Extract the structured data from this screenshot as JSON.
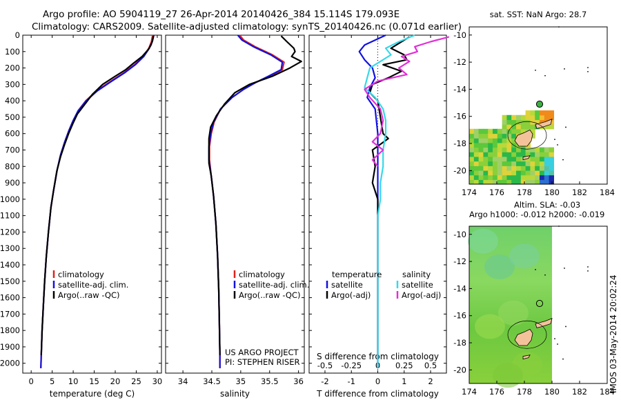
{
  "header": {
    "line1": "Argo profile: AO 5904119_27 26-Apr-2014 20140426_384 15.114S 179.093E",
    "line2": "Climatology: CARS2009. Satellite-adjusted climatology: synTS_20140426.nc (0.071d earlier)"
  },
  "side_stamp": "IMOS 03-May-2014 20:02:24",
  "colors": {
    "climatology": "#e0201b",
    "satellite": "#1010e0",
    "argo": "#000000",
    "sal_sat": "#35d8e8",
    "sal_argo": "#e030d8"
  },
  "chart_data": [
    {
      "id": "temperature",
      "type": "line",
      "xlabel": "temperature (deg C)",
      "ylabel": "",
      "xlim": [
        -2,
        31
      ],
      "ylim": [
        2060,
        0
      ],
      "xticks": [
        0,
        5,
        10,
        15,
        20,
        25,
        30
      ],
      "yticks": [
        0,
        100,
        200,
        300,
        400,
        500,
        600,
        700,
        800,
        900,
        1000,
        1100,
        1200,
        1300,
        1400,
        1500,
        1600,
        1700,
        1800,
        1900,
        2000
      ],
      "legend": [
        "climatology",
        "satellite-adj. clim.",
        "Argo(..raw -QC)"
      ],
      "series": [
        {
          "name": "climatology",
          "color": "#e0201b",
          "points": [
            [
              28.9,
              0
            ],
            [
              28.6,
              40
            ],
            [
              28.0,
              80
            ],
            [
              26.6,
              130
            ],
            [
              24.6,
              180
            ],
            [
              22.0,
              230
            ],
            [
              19.0,
              280
            ],
            [
              15.5,
              340
            ],
            [
              13.0,
              400
            ],
            [
              11.2,
              460
            ],
            [
              10.0,
              520
            ],
            [
              9.0,
              580
            ],
            [
              8.0,
              650
            ],
            [
              7.0,
              730
            ],
            [
              6.2,
              820
            ],
            [
              5.3,
              950
            ],
            [
              4.7,
              1050
            ],
            [
              4.1,
              1200
            ],
            [
              3.6,
              1350
            ],
            [
              3.2,
              1500
            ],
            [
              2.9,
              1650
            ],
            [
              2.6,
              1800
            ],
            [
              2.4,
              1950
            ],
            [
              2.3,
              2030
            ]
          ]
        },
        {
          "name": "satellite-adj. clim.",
          "color": "#1010e0",
          "points": [
            [
              29.2,
              0
            ],
            [
              28.8,
              40
            ],
            [
              28.1,
              80
            ],
            [
              26.8,
              130
            ],
            [
              24.8,
              180
            ],
            [
              22.2,
              230
            ],
            [
              19.2,
              280
            ],
            [
              15.7,
              340
            ],
            [
              13.1,
              400
            ],
            [
              11.2,
              460
            ],
            [
              10.0,
              520
            ],
            [
              9.0,
              580
            ],
            [
              8.0,
              650
            ],
            [
              7.0,
              730
            ],
            [
              6.2,
              820
            ],
            [
              5.3,
              950
            ],
            [
              4.7,
              1050
            ],
            [
              4.1,
              1200
            ],
            [
              3.6,
              1350
            ],
            [
              3.2,
              1500
            ],
            [
              2.9,
              1650
            ],
            [
              2.6,
              1800
            ],
            [
              2.4,
              1950
            ],
            [
              2.3,
              2030
            ]
          ]
        },
        {
          "name": "Argo(..raw -QC)",
          "color": "#000000",
          "points": [
            [
              29.1,
              5
            ],
            [
              28.9,
              30
            ],
            [
              28.5,
              60
            ],
            [
              27.8,
              90
            ],
            [
              26.4,
              130
            ],
            [
              24.4,
              170
            ],
            [
              22.5,
              210
            ],
            [
              20.0,
              250
            ],
            [
              17.0,
              300
            ],
            [
              14.6,
              360
            ],
            [
              12.8,
              420
            ],
            [
              11.0,
              480
            ],
            [
              9.9,
              540
            ],
            [
              8.9,
              600
            ],
            [
              7.9,
              670
            ],
            [
              7.0,
              740
            ],
            [
              6.1,
              830
            ],
            [
              5.3,
              950
            ],
            [
              4.7,
              1050
            ],
            [
              4.1,
              1200
            ],
            [
              3.6,
              1350
            ],
            [
              3.2,
              1500
            ],
            [
              2.9,
              1650
            ],
            [
              2.6,
              1800
            ],
            [
              2.4,
              1950
            ]
          ]
        }
      ]
    },
    {
      "id": "salinity",
      "type": "line",
      "xlabel": "salinity",
      "ylabel": "",
      "xlim": [
        33.7,
        36.1
      ],
      "ylim": [
        2060,
        0
      ],
      "xticks": [
        34,
        34.5,
        35,
        35.5,
        36
      ],
      "legend": [
        "climatology",
        "satellite-adj. clim.",
        "Argo(..raw -QC)"
      ],
      "annotation": [
        "US ARGO PROJECT",
        "PI: STEPHEN RISER"
      ],
      "series": [
        {
          "name": "climatology",
          "color": "#e0201b",
          "points": [
            [
              34.98,
              0
            ],
            [
              35.05,
              30
            ],
            [
              35.25,
              70
            ],
            [
              35.55,
              120
            ],
            [
              35.75,
              165
            ],
            [
              35.72,
              210
            ],
            [
              35.5,
              250
            ],
            [
              35.25,
              290
            ],
            [
              35.05,
              330
            ],
            [
              34.85,
              380
            ],
            [
              34.65,
              450
            ],
            [
              34.54,
              530
            ],
            [
              34.49,
              600
            ],
            [
              34.46,
              680
            ],
            [
              34.46,
              760
            ],
            [
              34.49,
              860
            ],
            [
              34.53,
              980
            ],
            [
              34.57,
              1150
            ],
            [
              34.6,
              1350
            ],
            [
              34.62,
              1550
            ],
            [
              34.63,
              1750
            ],
            [
              34.64,
              1950
            ],
            [
              34.64,
              2030
            ]
          ]
        },
        {
          "name": "satellite-adj. clim.",
          "color": "#1010e0",
          "points": [
            [
              34.95,
              0
            ],
            [
              35.02,
              30
            ],
            [
              35.22,
              70
            ],
            [
              35.52,
              120
            ],
            [
              35.72,
              165
            ],
            [
              35.7,
              210
            ],
            [
              35.48,
              250
            ],
            [
              35.25,
              290
            ],
            [
              35.05,
              330
            ],
            [
              34.85,
              380
            ],
            [
              34.65,
              450
            ],
            [
              34.53,
              530
            ],
            [
              34.48,
              600
            ],
            [
              34.45,
              680
            ],
            [
              34.45,
              760
            ],
            [
              34.49,
              860
            ],
            [
              34.53,
              980
            ],
            [
              34.57,
              1150
            ],
            [
              34.6,
              1350
            ],
            [
              34.62,
              1550
            ],
            [
              34.63,
              1750
            ],
            [
              34.64,
              1950
            ],
            [
              34.64,
              2030
            ]
          ]
        },
        {
          "name": "Argo(..raw -QC)",
          "color": "#000000",
          "points": [
            [
              35.7,
              5
            ],
            [
              35.8,
              40
            ],
            [
              35.92,
              80
            ],
            [
              35.94,
              100
            ],
            [
              35.88,
              130
            ],
            [
              36.05,
              160
            ],
            [
              35.85,
              200
            ],
            [
              35.55,
              250
            ],
            [
              35.15,
              300
            ],
            [
              34.9,
              350
            ],
            [
              34.72,
              420
            ],
            [
              34.58,
              490
            ],
            [
              34.48,
              560
            ],
            [
              34.45,
              630
            ],
            [
              34.45,
              700
            ],
            [
              34.45,
              780
            ],
            [
              34.49,
              860
            ],
            [
              34.53,
              980
            ],
            [
              34.57,
              1150
            ],
            [
              34.6,
              1350
            ],
            [
              34.62,
              1550
            ],
            [
              34.63,
              1750
            ],
            [
              34.64,
              1950
            ]
          ]
        }
      ]
    },
    {
      "id": "difference",
      "type": "line",
      "xlabel": "T difference from climatology",
      "x2label": "S difference from climatology",
      "ylabel": "",
      "xlim": [
        -2.6,
        2.6
      ],
      "ylim": [
        2060,
        0
      ],
      "xticks": [
        -2,
        -1,
        0,
        1,
        2
      ],
      "x2ticks": [
        "-0.5",
        "-0.25",
        "0",
        "0.25",
        "0.5"
      ],
      "legend_left_title": "temperature",
      "legend_right_title": "salinity",
      "legend_left": [
        "satellite",
        "Argo(-adj)"
      ],
      "legend_right": [
        "satellite",
        "Argo(-adj)"
      ],
      "series": [
        {
          "name": "T satellite",
          "color": "#1010e0",
          "points": [
            [
              0.3,
              0
            ],
            [
              -0.5,
              60
            ],
            [
              -0.7,
              100
            ],
            [
              -0.5,
              150
            ],
            [
              -0.2,
              200
            ],
            [
              -0.1,
              260
            ],
            [
              -0.3,
              320
            ],
            [
              -0.4,
              380
            ],
            [
              -0.1,
              450
            ],
            [
              0.0,
              600
            ],
            [
              0.0,
              1000
            ],
            [
              0.0,
              1500
            ],
            [
              0.0,
              2030
            ]
          ]
        },
        {
          "name": "T Argo(-adj)",
          "color": "#000000",
          "points": [
            [
              1.2,
              10
            ],
            [
              0.5,
              80
            ],
            [
              1.0,
              120
            ],
            [
              1.1,
              150
            ],
            [
              0.2,
              180
            ],
            [
              0.9,
              220
            ],
            [
              0.4,
              260
            ],
            [
              -0.2,
              300
            ],
            [
              -0.3,
              350
            ],
            [
              0.0,
              400
            ],
            [
              0.1,
              500
            ],
            [
              0.2,
              600
            ],
            [
              0.4,
              630
            ],
            [
              -0.2,
              700
            ],
            [
              -0.1,
              800
            ],
            [
              -0.2,
              900
            ],
            [
              0.0,
              1000
            ],
            [
              0.0,
              1200
            ],
            [
              0.0,
              1500
            ],
            [
              0.0,
              1950
            ]
          ]
        },
        {
          "name": "S satellite",
          "color": "#35d8e8",
          "points": [
            [
              1.4,
              0
            ],
            [
              0.8,
              40
            ],
            [
              0.3,
              80
            ],
            [
              0.5,
              120
            ],
            [
              0.1,
              160
            ],
            [
              -0.3,
              200
            ],
            [
              -0.4,
              260
            ],
            [
              -0.5,
              320
            ],
            [
              -0.1,
              380
            ],
            [
              0.2,
              450
            ],
            [
              0.3,
              520
            ],
            [
              0.3,
              600
            ],
            [
              0.2,
              700
            ],
            [
              0.2,
              800
            ],
            [
              0.1,
              900
            ],
            [
              0.1,
              1000
            ],
            [
              0.0,
              1100
            ],
            [
              0.0,
              1300
            ],
            [
              0.0,
              1500
            ],
            [
              0.0,
              2030
            ]
          ]
        },
        {
          "name": "S Argo(-adj)",
          "color": "#e030d8",
          "points": [
            [
              2.7,
              10
            ],
            [
              2.0,
              40
            ],
            [
              1.4,
              70
            ],
            [
              1.5,
              100
            ],
            [
              0.9,
              130
            ],
            [
              1.2,
              160
            ],
            [
              0.8,
              200
            ],
            [
              1.1,
              240
            ],
            [
              0.0,
              280
            ],
            [
              -0.5,
              330
            ],
            [
              -0.3,
              380
            ],
            [
              0.1,
              450
            ],
            [
              0.2,
              520
            ],
            [
              0.1,
              600
            ],
            [
              -0.2,
              650
            ],
            [
              0.2,
              700
            ],
            [
              -0.2,
              760
            ],
            [
              0.0,
              800
            ]
          ]
        }
      ]
    },
    {
      "id": "sst_map",
      "type": "heatmap",
      "title": "sat. SST: NaN Argo: 28.7",
      "xlim": [
        174,
        184
      ],
      "ylim": [
        -21,
        -9.4
      ],
      "xticks": [
        174,
        176,
        178,
        180,
        182,
        184
      ],
      "yticks": [
        -10,
        -12,
        -14,
        -16,
        -18,
        -20
      ],
      "marker": {
        "lon": 179.1,
        "lat": -15.1,
        "filled": true
      }
    },
    {
      "id": "sla_map",
      "type": "heatmap",
      "title": "Altim. SLA: -0.03",
      "subtitle": "Argo h1000: -0.012 h2000: -0.019",
      "xlim": [
        174,
        184
      ],
      "ylim": [
        -21,
        -9.4
      ],
      "xticks": [
        174,
        176,
        178,
        180,
        182,
        184
      ],
      "yticks": [
        -10,
        -12,
        -14,
        -16,
        -18,
        -20
      ],
      "marker": {
        "lon": 179.1,
        "lat": -15.1,
        "filled": false
      }
    }
  ]
}
